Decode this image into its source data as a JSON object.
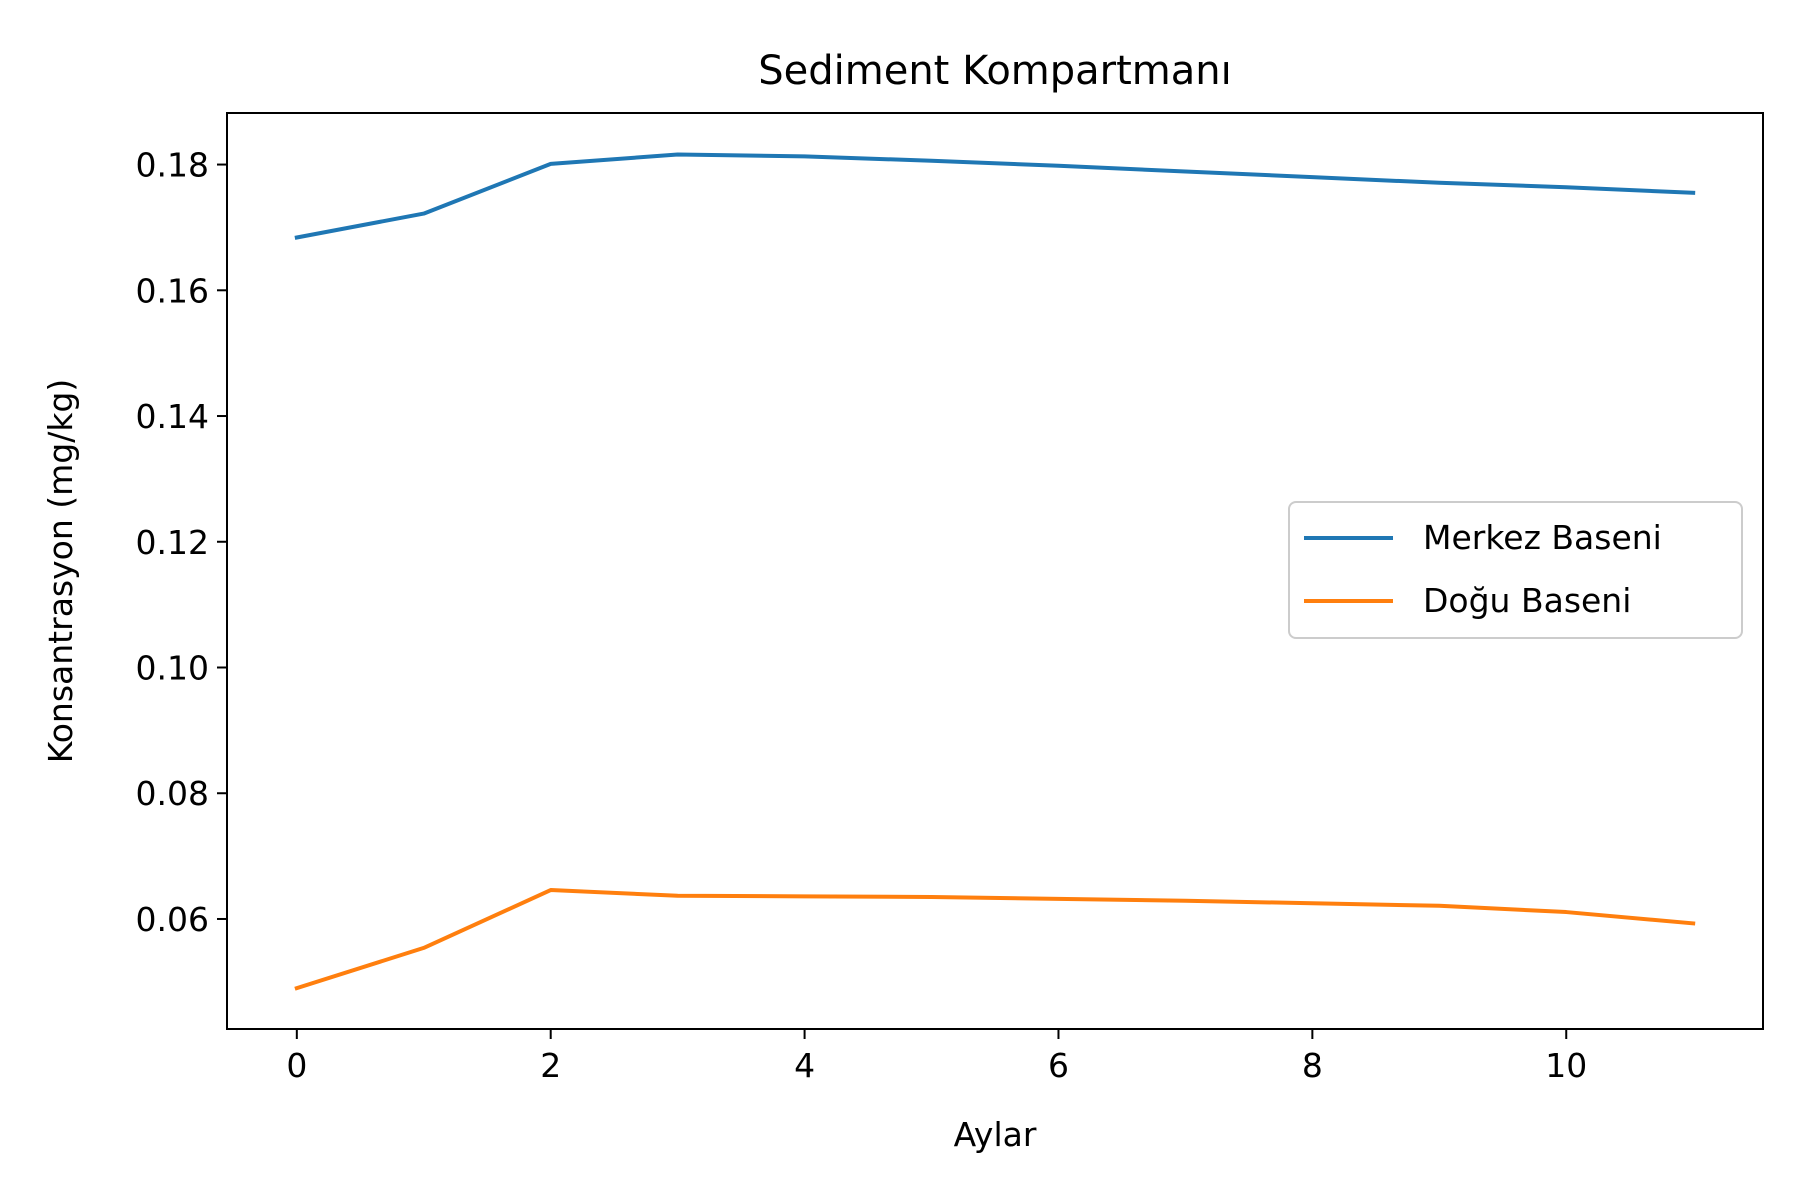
{
  "chart_data": {
    "type": "line",
    "title": "Sediment Kompartmanı",
    "xlabel": "Aylar",
    "ylabel": "Konsantrasyon (mg/kg)",
    "x": [
      0,
      1,
      2,
      3,
      4,
      5,
      6,
      7,
      8,
      9,
      10,
      11
    ],
    "xlim": [
      -0.55,
      11.55
    ],
    "ylim": [
      0.0425,
      0.1882
    ],
    "xticks": [
      0,
      2,
      4,
      6,
      8,
      10
    ],
    "yticks": [
      0.06,
      0.08,
      0.1,
      0.12,
      0.14,
      0.16,
      0.18
    ],
    "xtick_labels": [
      "0",
      "2",
      "4",
      "6",
      "8",
      "10"
    ],
    "ytick_labels": [
      "0.06",
      "0.08",
      "0.10",
      "0.12",
      "0.14",
      "0.16",
      "0.18"
    ],
    "grid": false,
    "legend_position": "center-right",
    "series": [
      {
        "name": "Merkez Baseni",
        "color": "#1f77b4",
        "values": [
          0.1684,
          0.1722,
          0.1801,
          0.1816,
          0.1813,
          0.1806,
          0.1798,
          0.1789,
          0.178,
          0.1771,
          0.1764,
          0.1755
        ]
      },
      {
        "name": "Doğu Baseni",
        "color": "#ff7f0e",
        "values": [
          0.049,
          0.0554,
          0.0646,
          0.0637,
          0.0636,
          0.0635,
          0.0632,
          0.0629,
          0.0625,
          0.0621,
          0.0611,
          0.0593
        ]
      }
    ]
  }
}
